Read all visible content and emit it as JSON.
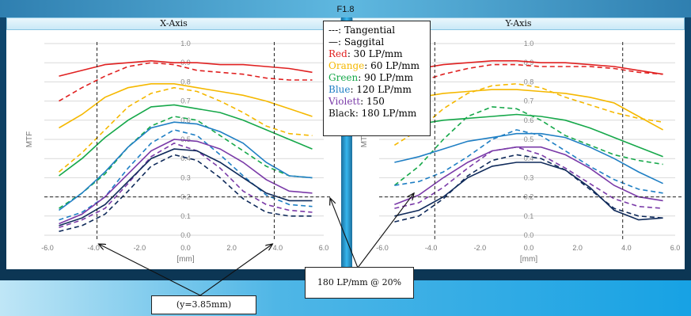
{
  "header": {
    "title": "F1.8"
  },
  "panels": {
    "left_title": "X-Axis",
    "right_title": "Y-Axis"
  },
  "legend": {
    "lines": [
      {
        "text": "---: Tangential",
        "color": "#111111",
        "name": "legend-tangential"
      },
      {
        "text": "—: Saggital",
        "color": "#111111",
        "name": "legend-saggital"
      },
      {
        "prefix": "Red",
        "text": ": 30 LP/mm",
        "color": "#e02020",
        "name": "legend-red"
      },
      {
        "prefix": "Orange",
        "text": ": 60 LP/mm",
        "color": "#f5b800",
        "name": "legend-orange"
      },
      {
        "prefix": "Green",
        "text": ": 90 LP/mm",
        "color": "#16a84a",
        "name": "legend-green"
      },
      {
        "prefix": "Blue",
        "text": ": 120 LP/mm",
        "color": "#1f7fc4",
        "name": "legend-blue"
      },
      {
        "prefix": "Violett",
        "text": ": 150",
        "color": "#7a3aa8",
        "name": "legend-violett"
      },
      {
        "prefix": "Black",
        "text": ": 180 LP/mm",
        "color": "#111111",
        "name": "legend-black"
      }
    ]
  },
  "annotations": {
    "lp180": "180 LP/mm @ 20%",
    "y_marker": "(y=3.85mm)"
  },
  "colors": {
    "red": "#e02020",
    "orange": "#f5b800",
    "green": "#16a84a",
    "blue": "#1f7fc4",
    "violet": "#7a3aa8",
    "black": "#0f2a5a"
  },
  "chart_data": [
    {
      "type": "line",
      "title": "X-Axis",
      "xlabel": "[mm]",
      "ylabel": "MTF",
      "xlim": [
        -6,
        6
      ],
      "ylim": [
        0,
        1
      ],
      "xticks": [
        "-6.0",
        "-4.0",
        "-2.0",
        "0.0",
        "2.0",
        "4.0",
        "6.0"
      ],
      "yticks": [
        "0.0",
        "0.1",
        "0.2",
        "0.3",
        "0.4",
        "0.5",
        "0.6",
        "0.7",
        "0.8",
        "0.9",
        "1.0"
      ],
      "reference_lines": {
        "x": [
          -3.85,
          3.85
        ],
        "y": [
          0.2
        ]
      },
      "x": [
        -5.5,
        -4.5,
        -3.5,
        -2.5,
        -1.5,
        -0.5,
        0.5,
        1.5,
        2.5,
        3.5,
        4.5,
        5.5
      ],
      "series": [
        {
          "color": "red",
          "style": "solid",
          "values": [
            0.83,
            0.86,
            0.89,
            0.9,
            0.91,
            0.9,
            0.9,
            0.89,
            0.89,
            0.88,
            0.87,
            0.85
          ]
        },
        {
          "color": "red",
          "style": "dashed",
          "values": [
            0.7,
            0.77,
            0.83,
            0.88,
            0.9,
            0.89,
            0.86,
            0.85,
            0.84,
            0.82,
            0.81,
            0.81
          ]
        },
        {
          "color": "orange",
          "style": "solid",
          "values": [
            0.56,
            0.63,
            0.72,
            0.77,
            0.79,
            0.79,
            0.77,
            0.75,
            0.73,
            0.7,
            0.66,
            0.62
          ]
        },
        {
          "color": "orange",
          "style": "dashed",
          "values": [
            0.33,
            0.43,
            0.55,
            0.67,
            0.74,
            0.77,
            0.75,
            0.7,
            0.64,
            0.57,
            0.53,
            0.52
          ]
        },
        {
          "color": "green",
          "style": "solid",
          "values": [
            0.31,
            0.4,
            0.51,
            0.6,
            0.67,
            0.68,
            0.66,
            0.64,
            0.6,
            0.55,
            0.5,
            0.45
          ]
        },
        {
          "color": "green",
          "style": "dashed",
          "values": [
            0.14,
            0.22,
            0.32,
            0.46,
            0.57,
            0.62,
            0.6,
            0.52,
            0.44,
            0.36,
            0.31,
            0.3
          ]
        },
        {
          "color": "blue",
          "style": "solid",
          "values": [
            0.13,
            0.22,
            0.33,
            0.46,
            0.56,
            0.59,
            0.58,
            0.54,
            0.48,
            0.38,
            0.31,
            0.3
          ]
        },
        {
          "color": "blue",
          "style": "dashed",
          "values": [
            0.08,
            0.12,
            0.2,
            0.35,
            0.48,
            0.55,
            0.52,
            0.42,
            0.31,
            0.21,
            0.16,
            0.15
          ]
        },
        {
          "color": "violet",
          "style": "solid",
          "values": [
            0.06,
            0.11,
            0.2,
            0.32,
            0.44,
            0.5,
            0.49,
            0.45,
            0.38,
            0.29,
            0.23,
            0.22
          ]
        },
        {
          "color": "violet",
          "style": "dashed",
          "values": [
            0.04,
            0.08,
            0.14,
            0.27,
            0.41,
            0.48,
            0.44,
            0.35,
            0.23,
            0.16,
            0.13,
            0.12
          ]
        },
        {
          "color": "black",
          "style": "solid",
          "values": [
            0.05,
            0.09,
            0.16,
            0.28,
            0.4,
            0.45,
            0.44,
            0.38,
            0.3,
            0.22,
            0.18,
            0.18
          ]
        },
        {
          "color": "black",
          "style": "dashed",
          "values": [
            0.02,
            0.05,
            0.11,
            0.23,
            0.36,
            0.42,
            0.39,
            0.3,
            0.19,
            0.12,
            0.1,
            0.1
          ]
        }
      ]
    },
    {
      "type": "line",
      "title": "Y-Axis",
      "xlabel": "[mm]",
      "ylabel": "MTF",
      "xlim": [
        -6,
        6
      ],
      "ylim": [
        0,
        1
      ],
      "xticks": [
        "-6.0",
        "-4.0",
        "-2.0",
        "0.0",
        "2.0",
        "4.0",
        "6.0"
      ],
      "yticks": [
        "0.0",
        "0.1",
        "0.2",
        "0.3",
        "0.4",
        "0.5",
        "0.6",
        "0.7",
        "0.8",
        "0.9",
        "1.0"
      ],
      "reference_lines": {
        "x": [
          -3.85,
          3.85
        ],
        "y": [
          0.2
        ]
      },
      "x": [
        -5.5,
        -4.5,
        -3.5,
        -2.5,
        -1.5,
        -0.5,
        0.5,
        1.5,
        2.5,
        3.5,
        4.5,
        5.5
      ],
      "series": [
        {
          "color": "red",
          "style": "solid",
          "values": [
            0.86,
            0.87,
            0.89,
            0.9,
            0.91,
            0.91,
            0.9,
            0.9,
            0.89,
            0.88,
            0.86,
            0.84
          ]
        },
        {
          "color": "red",
          "style": "dashed",
          "values": [
            0.77,
            0.8,
            0.84,
            0.87,
            0.89,
            0.89,
            0.88,
            0.88,
            0.88,
            0.87,
            0.85,
            0.84
          ]
        },
        {
          "color": "orange",
          "style": "solid",
          "values": [
            0.69,
            0.72,
            0.74,
            0.75,
            0.76,
            0.76,
            0.75,
            0.74,
            0.72,
            0.69,
            0.62,
            0.55
          ]
        },
        {
          "color": "orange",
          "style": "dashed",
          "values": [
            0.47,
            0.55,
            0.66,
            0.74,
            0.78,
            0.79,
            0.77,
            0.72,
            0.68,
            0.64,
            0.61,
            0.59
          ]
        },
        {
          "color": "green",
          "style": "solid",
          "values": [
            0.55,
            0.58,
            0.6,
            0.61,
            0.62,
            0.63,
            0.62,
            0.6,
            0.56,
            0.51,
            0.46,
            0.41
          ]
        },
        {
          "color": "green",
          "style": "dashed",
          "values": [
            0.26,
            0.36,
            0.5,
            0.62,
            0.67,
            0.66,
            0.6,
            0.52,
            0.47,
            0.42,
            0.39,
            0.37
          ]
        },
        {
          "color": "blue",
          "style": "solid",
          "values": [
            0.38,
            0.41,
            0.45,
            0.49,
            0.51,
            0.53,
            0.53,
            0.51,
            0.46,
            0.4,
            0.33,
            0.27
          ]
        },
        {
          "color": "blue",
          "style": "dashed",
          "values": [
            0.26,
            0.28,
            0.33,
            0.41,
            0.5,
            0.55,
            0.52,
            0.44,
            0.36,
            0.29,
            0.24,
            0.22
          ]
        },
        {
          "color": "violet",
          "style": "solid",
          "values": [
            0.16,
            0.21,
            0.3,
            0.38,
            0.44,
            0.46,
            0.46,
            0.42,
            0.35,
            0.26,
            0.2,
            0.18
          ]
        },
        {
          "color": "violet",
          "style": "dashed",
          "values": [
            0.14,
            0.17,
            0.25,
            0.35,
            0.44,
            0.46,
            0.42,
            0.35,
            0.27,
            0.19,
            0.15,
            0.14
          ]
        },
        {
          "color": "black",
          "style": "solid",
          "values": [
            0.1,
            0.13,
            0.2,
            0.3,
            0.36,
            0.38,
            0.38,
            0.34,
            0.25,
            0.13,
            0.08,
            0.09
          ]
        },
        {
          "color": "black",
          "style": "dashed",
          "values": [
            0.07,
            0.1,
            0.19,
            0.31,
            0.39,
            0.42,
            0.4,
            0.34,
            0.24,
            0.14,
            0.1,
            0.09
          ]
        }
      ]
    }
  ]
}
